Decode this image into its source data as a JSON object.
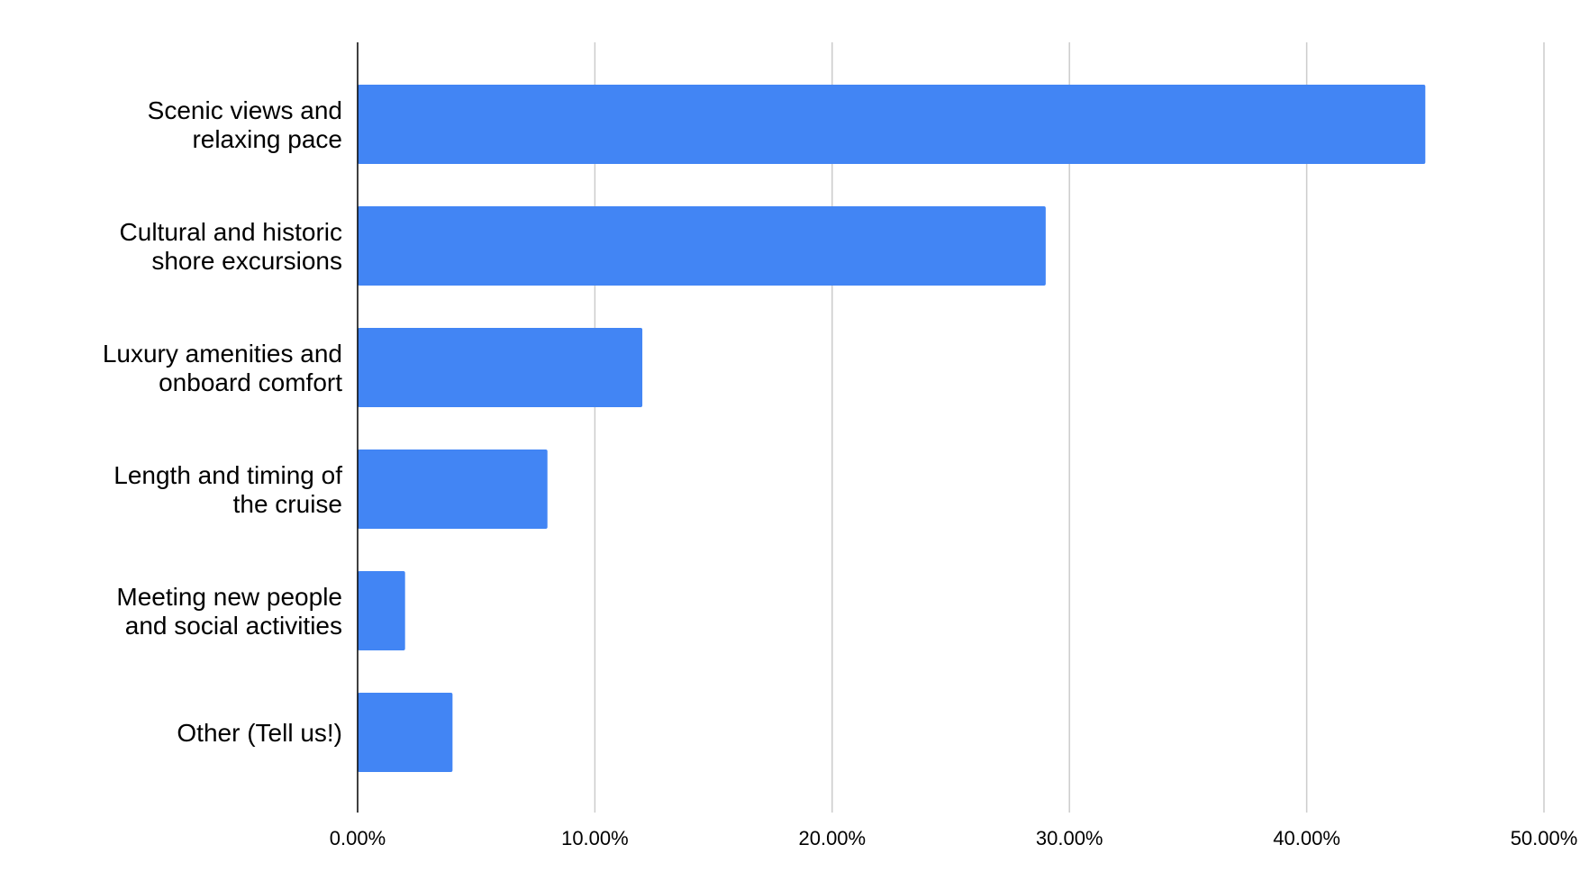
{
  "chart_data": {
    "type": "bar",
    "orientation": "horizontal",
    "title": "",
    "xlabel": "",
    "ylabel": "",
    "categories": [
      [
        "Scenic views and",
        "relaxing pace"
      ],
      [
        "Cultural and historic",
        "shore excursions"
      ],
      [
        "Luxury amenities and",
        "onboard comfort"
      ],
      [
        "Length and timing of",
        "the cruise"
      ],
      [
        "Meeting new people",
        "and social activities"
      ],
      [
        "Other (Tell us!)"
      ]
    ],
    "values": [
      0.45,
      0.29,
      0.12,
      0.08,
      0.02,
      0.04
    ],
    "xlim": [
      0,
      0.5
    ],
    "ticks": [
      0,
      0.1,
      0.2,
      0.3,
      0.4,
      0.5
    ],
    "tick_labels": [
      "0.00%",
      "10.00%",
      "20.00%",
      "30.00%",
      "40.00%",
      "50.00%"
    ],
    "grid": true,
    "legend": "none",
    "colors": {
      "bar": "#4285f4",
      "grid": "#cccccc",
      "axis": "#000000"
    }
  }
}
